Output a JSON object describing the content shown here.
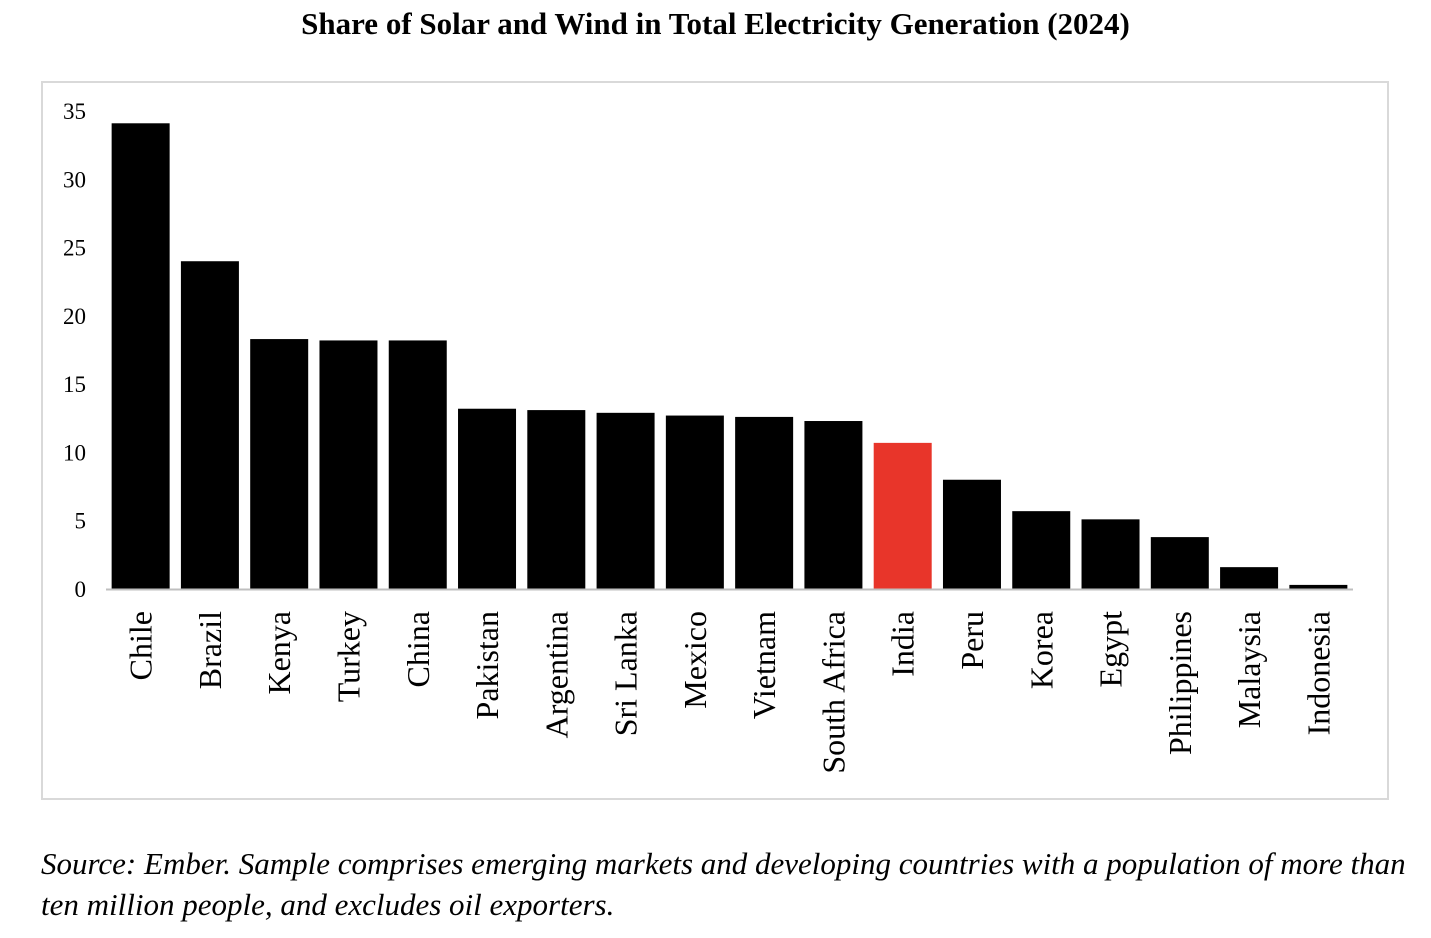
{
  "chart_data": {
    "type": "bar",
    "title": "Share of Solar and Wind in Total Electricity Generation (2024)",
    "xlabel": "",
    "ylabel": "",
    "ylim": [
      0,
      35
    ],
    "yticks": [
      0,
      5,
      10,
      15,
      20,
      25,
      30,
      35
    ],
    "grid": false,
    "legend": "none",
    "categories": [
      "Chile",
      "Brazil",
      "Kenya",
      "Turkey",
      "China",
      "Pakistan",
      "Argentina",
      "Sri Lanka",
      "Mexico",
      "Vietnam",
      "South Africa",
      "India",
      "Peru",
      "Korea",
      "Egypt",
      "Philippines",
      "Malaysia",
      "Indonesia"
    ],
    "values": [
      34.1,
      24.0,
      18.3,
      18.2,
      18.2,
      13.2,
      13.1,
      12.9,
      12.7,
      12.6,
      12.3,
      10.7,
      8.0,
      5.7,
      5.1,
      3.8,
      1.6,
      0.3
    ],
    "highlight_category": "India",
    "colors": {
      "bar": "#000000",
      "highlight": "#e8352a",
      "axis": "#bfbfbf",
      "frame": "#d9d9d9"
    }
  },
  "source_note": "Source: Ember. Sample comprises emerging markets and developing countries with a population of more than ten million people, and excludes oil exporters."
}
